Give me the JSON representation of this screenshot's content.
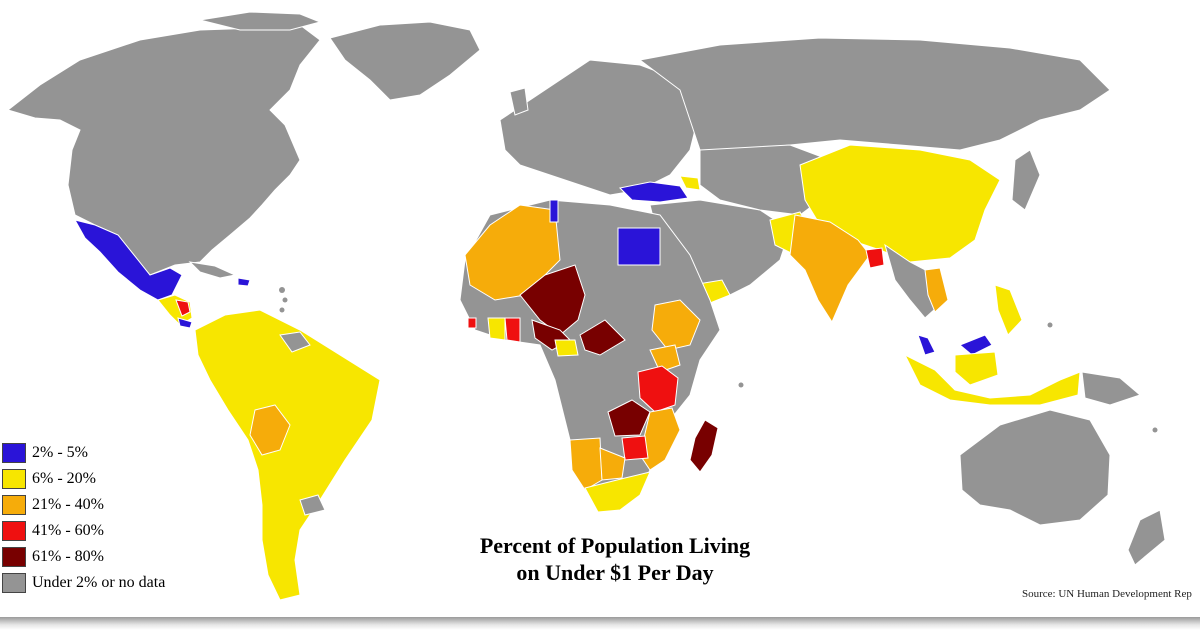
{
  "title_line1": "Percent of Population Living",
  "title_line2": "on Under $1 Per Day",
  "source": "Source: UN Human Development Rep",
  "legend": [
    {
      "label": "2% - 5%",
      "color": "#2a14d8"
    },
    {
      "label": "6% - 20%",
      "color": "#f7e600"
    },
    {
      "label": "21% - 40%",
      "color": "#f6ac0a"
    },
    {
      "label": "41% - 60%",
      "color": "#ef1010"
    },
    {
      "label": "61% - 80%",
      "color": "#780000"
    },
    {
      "label": "Under 2% or no data",
      "color": "#949494"
    }
  ]
}
